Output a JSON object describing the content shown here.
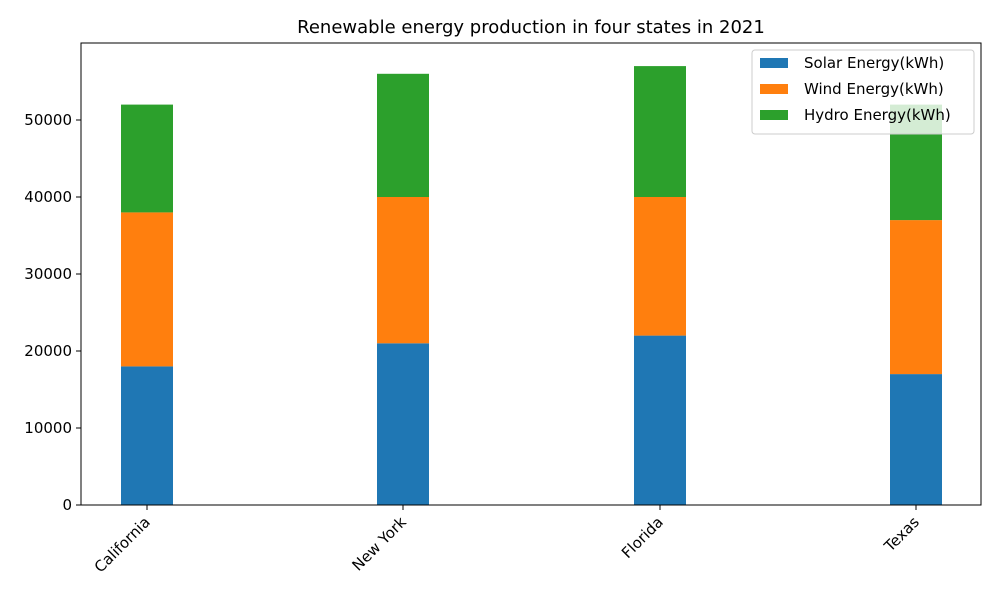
{
  "chart_data": {
    "type": "bar",
    "stacked": true,
    "title": "Renewable energy production in four states in 2021",
    "xlabel": "",
    "ylabel": "",
    "categories": [
      "California",
      "New York",
      "Florida",
      "Texas"
    ],
    "series": [
      {
        "name": "Solar Energy(kWh)",
        "values": [
          18000,
          21000,
          22000,
          17000
        ],
        "color": "#1f77b4"
      },
      {
        "name": "Wind Energy(kWh)",
        "values": [
          20000,
          19000,
          18000,
          20000
        ],
        "color": "#ff7f0e"
      },
      {
        "name": "Hydro Energy(kWh)",
        "values": [
          14000,
          16000,
          17000,
          15000
        ],
        "color": "#2ca02c"
      }
    ],
    "ylim": [
      0,
      60000
    ],
    "yticks": [
      0,
      10000,
      20000,
      30000,
      40000,
      50000
    ],
    "grid": false,
    "legend_position": "top-right"
  }
}
